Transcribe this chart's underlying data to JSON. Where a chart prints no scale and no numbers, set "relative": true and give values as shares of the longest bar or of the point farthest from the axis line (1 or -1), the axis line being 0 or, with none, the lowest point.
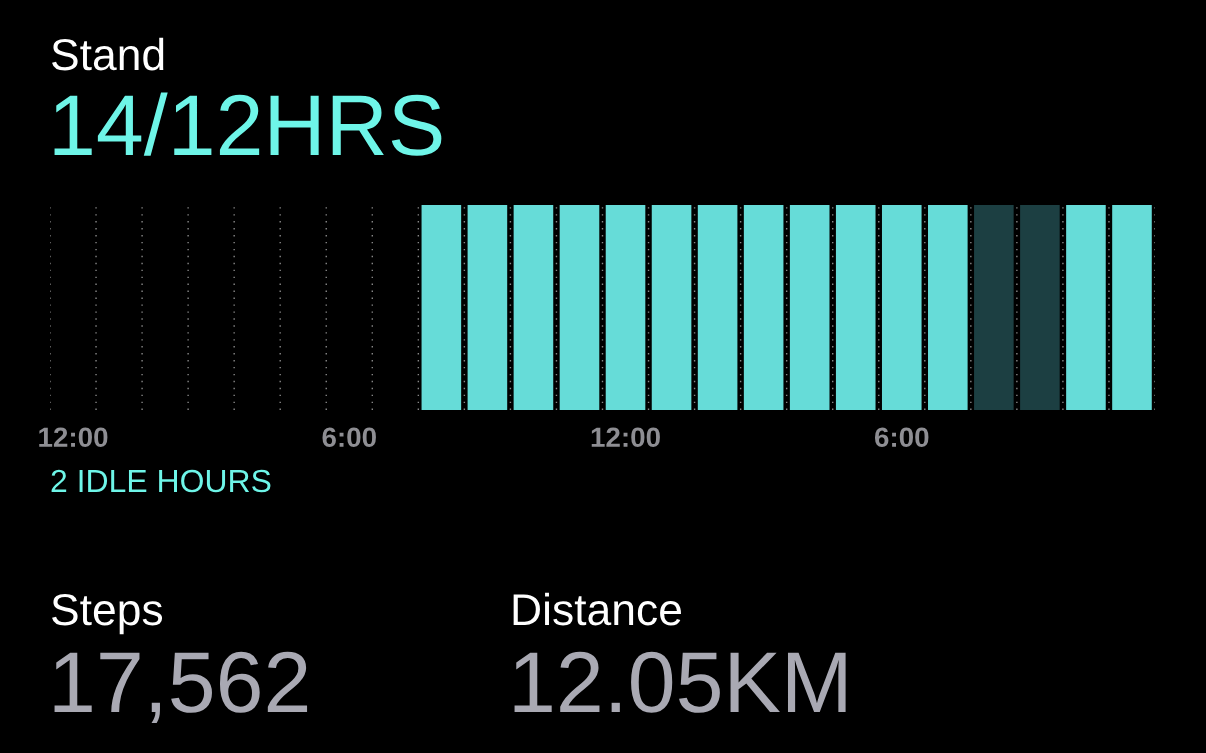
{
  "chart_data": {
    "type": "bar",
    "title": "Stand",
    "subtitle": "14/12HRS",
    "categories": [
      "12:00",
      null,
      null,
      null,
      null,
      null,
      "6:00",
      null,
      null,
      null,
      null,
      null,
      "12:00",
      null,
      null,
      null,
      null,
      null,
      "6:00",
      null,
      null,
      null,
      null,
      null
    ],
    "values": [
      null,
      null,
      null,
      null,
      null,
      null,
      null,
      null,
      1,
      1,
      1,
      1,
      1,
      1,
      1,
      1,
      1,
      1,
      1,
      1,
      1,
      1,
      1,
      1
    ],
    "colors": [
      "#66dcd8",
      "#66dcd8",
      "#66dcd8",
      "#66dcd8",
      "#66dcd8",
      "#66dcd8",
      "#66dcd8",
      "#66dcd8",
      "#66dcd8",
      "#66dcd8",
      "#66dcd8",
      "#66dcd8",
      "#66dcd8",
      "#66dcd8",
      "#66dcd8",
      "#66dcd8",
      "#66dcd8",
      "#66dcd8",
      "#66dcd8",
      "#66dcd8",
      "#1c3f42",
      "#1c3f42",
      "#66dcd8",
      "#66dcd8"
    ],
    "relative": true,
    "grid": "x",
    "annotations": [
      "2 IDLE HOURS",
      "Steps",
      "17,562",
      "Distance",
      "12.05KM"
    ]
  }
}
